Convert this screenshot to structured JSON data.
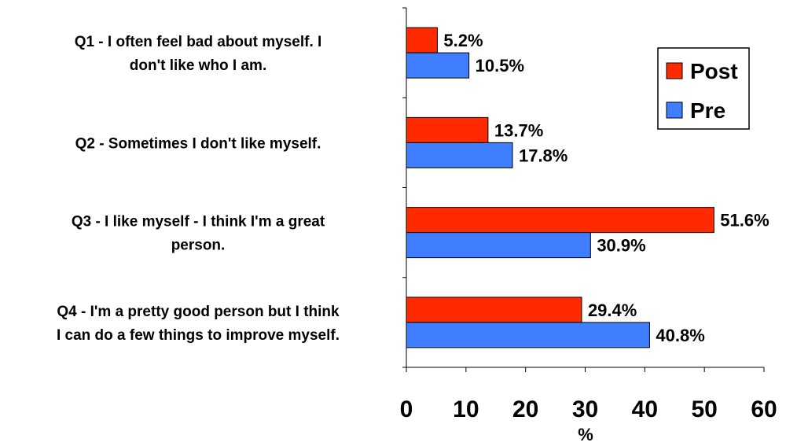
{
  "chart_data": {
    "type": "bar",
    "orientation": "horizontal",
    "categories": [
      [
        "Q1 - I often feel bad about myself.  I",
        "don't like who I am."
      ],
      [
        "Q2 - Sometimes I don't like myself."
      ],
      [
        "Q3 - I like myself - I think I'm a great",
        "person."
      ],
      [
        "Q4 - I'm a pretty good person but I think",
        "I can do a few things to improve myself."
      ]
    ],
    "series": [
      {
        "name": "Post",
        "color": "#ff2a00",
        "values": [
          5.2,
          13.7,
          51.6,
          29.4
        ],
        "labels": [
          "5.2%",
          "13.7%",
          "51.6%",
          "29.4%"
        ]
      },
      {
        "name": "Pre",
        "color": "#3f7fff",
        "values": [
          10.5,
          17.8,
          30.9,
          40.8
        ],
        "labels": [
          "10.5%",
          "17.8%",
          "30.9%",
          "40.8%"
        ]
      }
    ],
    "xlabel": "%",
    "xlim": [
      0,
      60
    ],
    "xticks": [
      "0",
      "10",
      "20",
      "30",
      "40",
      "50",
      "60"
    ],
    "grid": false,
    "legend_position": "top-right",
    "legend": [
      "Post",
      "Pre"
    ]
  }
}
